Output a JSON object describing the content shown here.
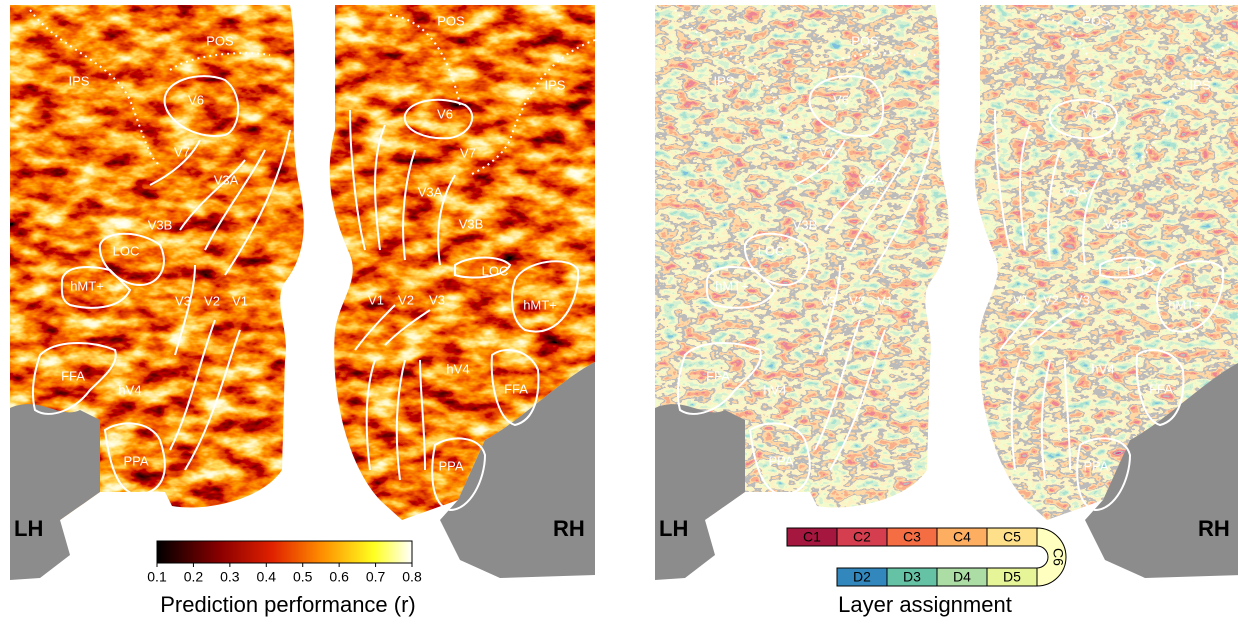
{
  "brain_map": {
    "hemispheres": [
      "LH",
      "RH"
    ],
    "left_hemisphere_regions": [
      "IPS",
      "POS",
      "V6",
      "V7",
      "V3A",
      "V3B",
      "LOC",
      "hMT+",
      "V3",
      "V2",
      "V1",
      "FFA",
      "hV4",
      "PPA"
    ],
    "right_hemisphere_regions": [
      "POS",
      "IPS",
      "V6",
      "V7",
      "V3A",
      "V3B",
      "LOC",
      "hMT+",
      "V1",
      "V2",
      "V3",
      "hV4",
      "FFA",
      "PPA"
    ]
  },
  "colorbar": {
    "label": "Prediction performance (r)",
    "range": [
      0.1,
      0.8
    ],
    "ticks": [
      0.1,
      0.2,
      0.3,
      0.4,
      0.5,
      0.6,
      0.7,
      0.8
    ]
  },
  "legend": {
    "title": "Layer assignment",
    "top_row": [
      {
        "label": "C1",
        "color": "#a5173f"
      },
      {
        "label": "C2",
        "color": "#d53e4f"
      },
      {
        "label": "C3",
        "color": "#f46d43"
      },
      {
        "label": "C4",
        "color": "#fdae61"
      },
      {
        "label": "C5",
        "color": "#fee08b"
      }
    ],
    "turn": {
      "label": "C6",
      "color": "#ffffbf"
    },
    "bottom_row": [
      {
        "label": "D2",
        "color": "#3288bd"
      },
      {
        "label": "D3",
        "color": "#66c2a5"
      },
      {
        "label": "D4",
        "color": "#abdda4"
      },
      {
        "label": "D5",
        "color": "#e6f598"
      }
    ]
  }
}
